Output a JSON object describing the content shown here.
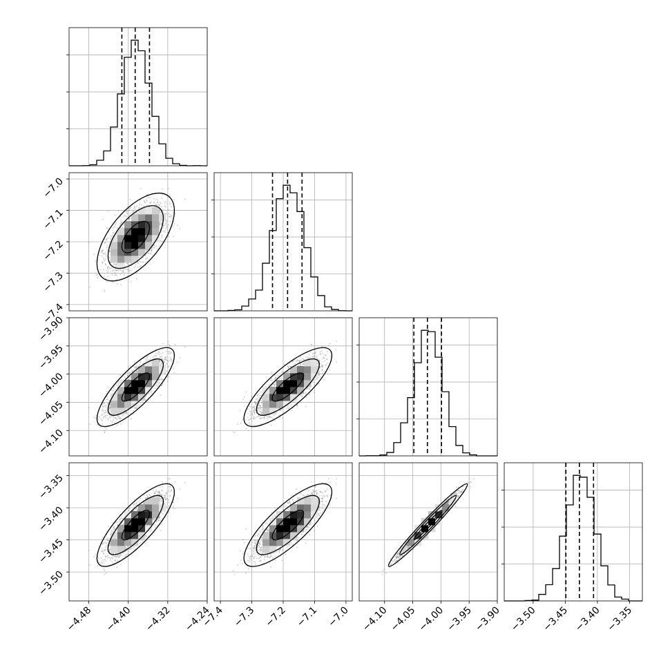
{
  "chart_data": {
    "type": "corner",
    "grid": true,
    "colors": {
      "hist": "#000000",
      "points": "#8c8c8c",
      "frame": "#000000",
      "grid": "#b0b0b0"
    },
    "parameters": [
      {
        "range": [
          -4.52,
          -4.24
        ],
        "ticks": [
          -4.48,
          -4.4,
          -4.32,
          -4.24
        ],
        "tick_labels": [
          "−4.48",
          "−4.40",
          "−4.32",
          "−4.24"
        ],
        "mean": -4.385,
        "sd": 0.028,
        "quantiles": [
          -4.413,
          -4.386,
          -4.357
        ]
      },
      {
        "range": [
          -7.42,
          -6.98
        ],
        "ticks": [
          -7.4,
          -7.3,
          -7.2,
          -7.1,
          -7.0
        ],
        "tick_labels": [
          "−7.4",
          "−7.3",
          "−7.2",
          "−7.1",
          "−7.0"
        ],
        "mean": -7.185,
        "sd": 0.05,
        "quantiles": [
          -7.234,
          -7.186,
          -7.14
        ]
      },
      {
        "range": [
          -4.145,
          -3.9
        ],
        "ticks": [
          -4.1,
          -4.05,
          -4.0,
          -3.95,
          -3.9
        ],
        "tick_labels": [
          "−4.10",
          "−4.05",
          "−4.00",
          "−3.95",
          "−3.90"
        ],
        "mean": -4.023,
        "sd": 0.025,
        "quantiles": [
          -4.048,
          -4.024,
          -3.999
        ]
      },
      {
        "range": [
          -3.545,
          -3.33
        ],
        "ticks": [
          -3.5,
          -3.45,
          -3.4,
          -3.35
        ],
        "tick_labels": [
          "−3.50",
          "−3.45",
          "−3.40",
          "−3.35"
        ],
        "mean": -3.427,
        "sd": 0.023,
        "quantiles": [
          -3.449,
          -3.428,
          -3.406
        ]
      }
    ],
    "correlations": [
      [
        1,
        0.6,
        0.8,
        0.8
      ],
      [
        0.6,
        1,
        0.8,
        0.8
      ],
      [
        0.8,
        0.8,
        1,
        0.98
      ],
      [
        0.8,
        0.8,
        0.98,
        1
      ]
    ]
  }
}
